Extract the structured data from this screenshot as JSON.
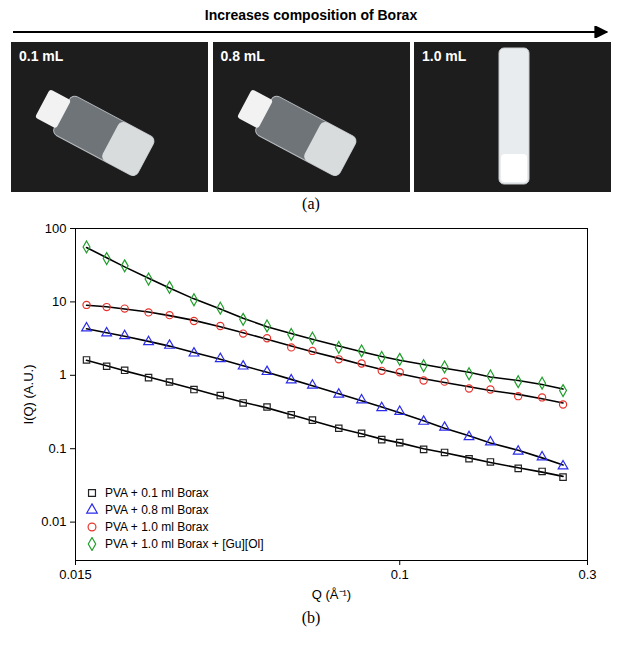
{
  "panel_a": {
    "banner": "Increases composition of Borax",
    "photos": [
      "0.1 mL",
      "0.8 mL",
      "1.0 mL"
    ],
    "caption": "(a)"
  },
  "panel_b": {
    "caption": "(b)"
  },
  "chart_data": {
    "type": "scatter",
    "xlabel": "Q (Å⁻¹)",
    "ylabel": "I(Q) (A.U.)",
    "log": true,
    "legend": "lower left",
    "xlim": [
      0.015,
      0.3
    ],
    "xticks": [
      0.015,
      0.1,
      0.3
    ],
    "ylim": [
      0.003,
      100
    ],
    "yticks": [
      0.01,
      0.1,
      1,
      10,
      100
    ],
    "x": [
      0.016,
      0.018,
      0.02,
      0.023,
      0.026,
      0.03,
      0.035,
      0.04,
      0.046,
      0.053,
      0.06,
      0.07,
      0.08,
      0.09,
      0.1,
      0.115,
      0.13,
      0.15,
      0.17,
      0.2,
      0.23,
      0.26
    ],
    "series": [
      {
        "name": "PVA + 0.1 ml Borax",
        "color": "#222222",
        "marker": "square",
        "values": [
          1.62,
          1.33,
          1.17,
          0.93,
          0.81,
          0.64,
          0.53,
          0.42,
          0.37,
          0.29,
          0.245,
          0.19,
          0.162,
          0.133,
          0.121,
          0.098,
          0.089,
          0.073,
          0.066,
          0.054,
          0.049,
          0.041
        ],
        "fit": [
          1.6,
          1.35,
          1.15,
          0.95,
          0.8,
          0.65,
          0.52,
          0.43,
          0.36,
          0.29,
          0.24,
          0.19,
          0.16,
          0.135,
          0.12,
          0.1,
          0.088,
          0.075,
          0.065,
          0.055,
          0.048,
          0.042
        ]
      },
      {
        "name": "PVA + 0.8 ml Borax",
        "color": "#2b2bea",
        "marker": "triangle",
        "values": [
          4.4,
          3.75,
          3.45,
          2.85,
          2.55,
          2.0,
          1.68,
          1.33,
          1.12,
          0.86,
          0.73,
          0.55,
          0.46,
          0.36,
          0.32,
          0.235,
          0.195,
          0.145,
          0.123,
          0.092,
          0.077,
          0.058
        ],
        "fit": [
          4.3,
          3.8,
          3.4,
          2.9,
          2.5,
          2.05,
          1.65,
          1.35,
          1.1,
          0.88,
          0.72,
          0.56,
          0.45,
          0.37,
          0.31,
          0.24,
          0.19,
          0.15,
          0.12,
          0.095,
          0.075,
          0.06
        ]
      },
      {
        "name": "PVA + 1.0 ml Borax",
        "color": "#e8322c",
        "marker": "circle",
        "values": [
          9.1,
          8.5,
          8.1,
          7.2,
          6.6,
          5.5,
          4.7,
          3.7,
          3.2,
          2.4,
          2.15,
          1.65,
          1.45,
          1.15,
          1.1,
          0.85,
          0.82,
          0.66,
          0.64,
          0.52,
          0.5,
          0.4
        ],
        "fit": [
          9,
          8.6,
          8,
          7.3,
          6.5,
          5.6,
          4.6,
          3.8,
          3.1,
          2.5,
          2.1,
          1.7,
          1.4,
          1.2,
          1.05,
          0.9,
          0.8,
          0.7,
          0.62,
          0.55,
          0.48,
          0.42
        ]
      },
      {
        "name": "PVA + 1.0 ml Borax + [Gu][Ol]",
        "color": "#1f9e2a",
        "marker": "diamond",
        "values": [
          56,
          39,
          31,
          20.5,
          15.8,
          10.7,
          8.2,
          5.8,
          4.7,
          3.6,
          3.2,
          2.4,
          2.15,
          1.75,
          1.65,
          1.35,
          1.3,
          1.05,
          0.98,
          0.82,
          0.78,
          0.62
        ],
        "fit": [
          55,
          40,
          30,
          21,
          15.5,
          11,
          8,
          6,
          4.6,
          3.7,
          3.1,
          2.5,
          2.1,
          1.8,
          1.6,
          1.4,
          1.25,
          1.1,
          0.95,
          0.85,
          0.75,
          0.65
        ]
      }
    ]
  }
}
